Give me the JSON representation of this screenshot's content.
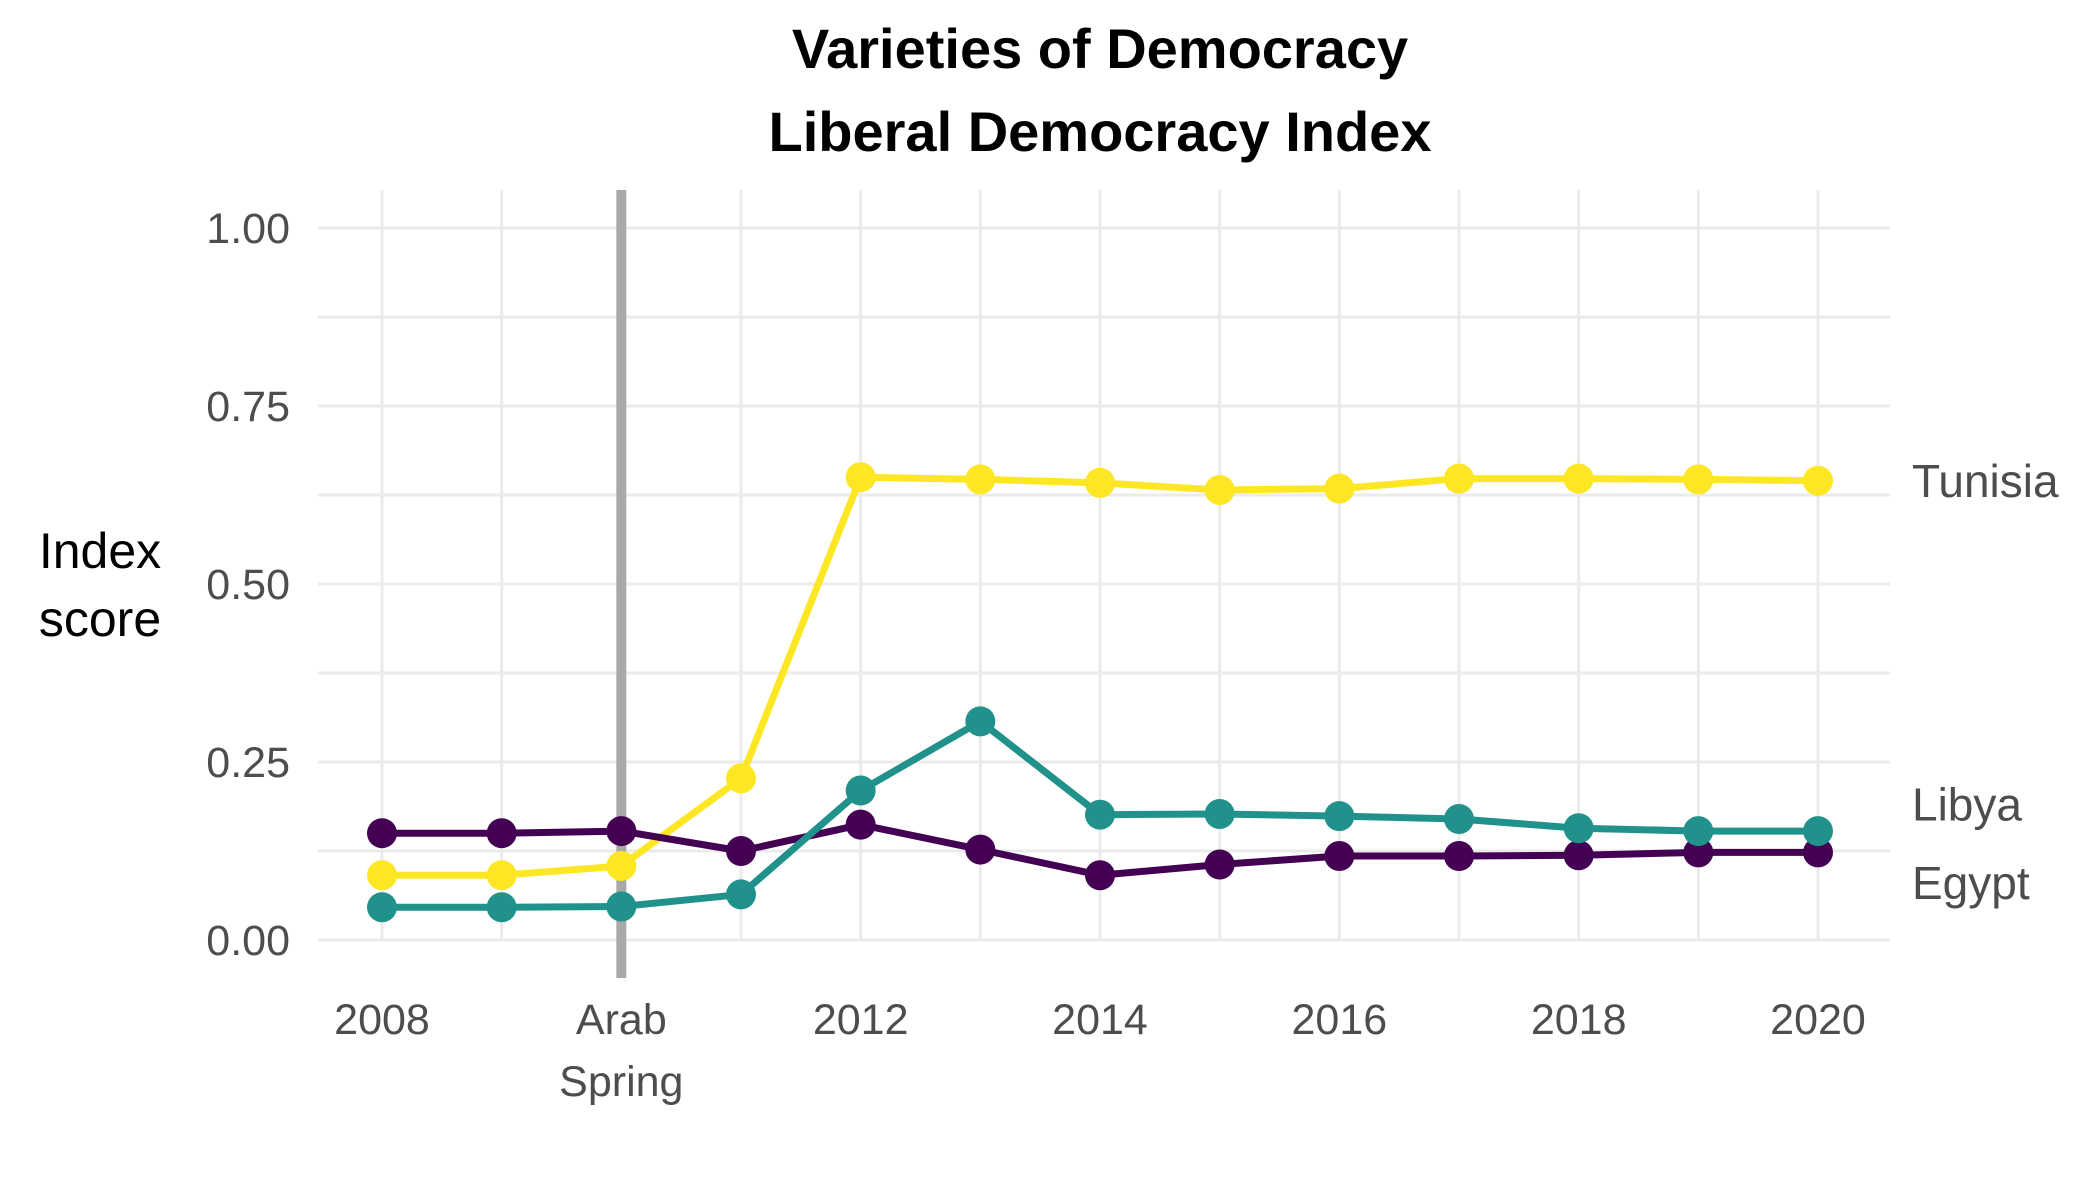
{
  "chart_data": {
    "type": "line",
    "title_lines": [
      "Varieties of Democracy",
      "Liberal Democracy Index"
    ],
    "xlabel": "",
    "ylabel_lines": [
      "Index",
      "score"
    ],
    "xlim": [
      2008,
      2020
    ],
    "ylim": [
      0,
      1
    ],
    "x_ticks": [
      {
        "value": 2008,
        "lines": [
          "2008"
        ]
      },
      {
        "value": 2010,
        "lines": [
          "Arab",
          "Spring"
        ]
      },
      {
        "value": 2012,
        "lines": [
          "2012"
        ]
      },
      {
        "value": 2014,
        "lines": [
          "2014"
        ]
      },
      {
        "value": 2016,
        "lines": [
          "2016"
        ]
      },
      {
        "value": 2018,
        "lines": [
          "2018"
        ]
      },
      {
        "value": 2020,
        "lines": [
          "2020"
        ]
      }
    ],
    "y_ticks": [
      {
        "value": 0,
        "label": "0.00"
      },
      {
        "value": 0.25,
        "label": "0.25"
      },
      {
        "value": 0.5,
        "label": "0.50"
      },
      {
        "value": 0.75,
        "label": "0.75"
      },
      {
        "value": 1.0,
        "label": "1.00"
      }
    ],
    "vline_x": 2010,
    "vline_color": "#a9a9a9",
    "grid": true,
    "legend": "direct labels at right end of lines",
    "x": [
      2008,
      2009,
      2010,
      2011,
      2012,
      2013,
      2014,
      2015,
      2016,
      2017,
      2018,
      2019,
      2020
    ],
    "series": [
      {
        "name": "Egypt",
        "color": "#440154",
        "values": [
          0.15,
          0.15,
          0.153,
          0.125,
          0.162,
          0.127,
          0.091,
          0.106,
          0.118,
          0.118,
          0.119,
          0.123,
          0.123
        ]
      },
      {
        "name": "Libya",
        "color": "#21918c",
        "values": [
          0.046,
          0.046,
          0.047,
          0.064,
          0.21,
          0.307,
          0.176,
          0.177,
          0.174,
          0.17,
          0.157,
          0.153,
          0.153
        ]
      },
      {
        "name": "Tunisia",
        "color": "#fde725",
        "values": [
          0.091,
          0.091,
          0.104,
          0.227,
          0.65,
          0.647,
          0.642,
          0.632,
          0.634,
          0.648,
          0.648,
          0.647,
          0.645
        ]
      }
    ]
  }
}
